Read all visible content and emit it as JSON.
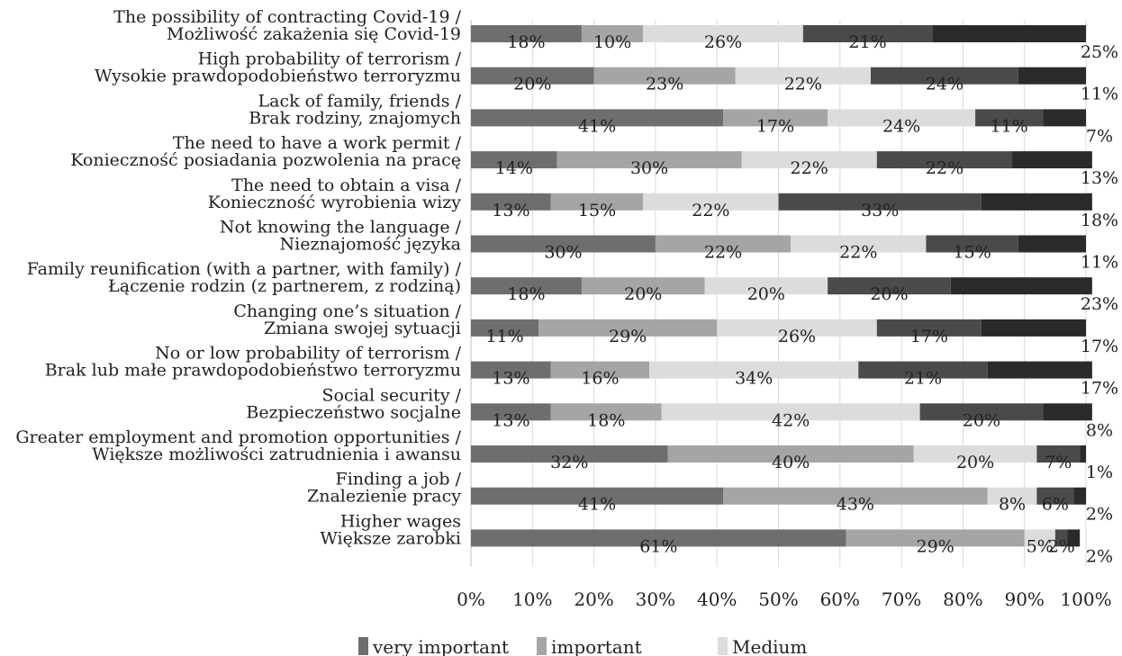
{
  "chart_data": {
    "type": "bar",
    "orientation": "horizontal",
    "stacked": "percent",
    "categories": [
      [
        "The possibility of contracting Covid-19 /",
        "Możliwość zakażenia się Covid-19"
      ],
      [
        "High probability of terrorism /",
        "Wysokie prawdopodobieństwo terroryzmu"
      ],
      [
        "Lack of family, friends /",
        "Brak rodziny, znajomych"
      ],
      [
        "The need to have a work permit /",
        "Konieczność posiadania pozwolenia na pracę"
      ],
      [
        "The need to obtain a visa /",
        "Konieczność wyrobienia wizy"
      ],
      [
        "Not knowing the language /",
        "Nieznajomość języka"
      ],
      [
        "Family reunification (with a partner, with family) /",
        "Łączenie rodzin (z partnerem, z rodziną)"
      ],
      [
        "Changing one’s situation /",
        "Zmiana swojej sytuacji"
      ],
      [
        "No or low probability of terrorism /",
        "Brak lub małe prawdopodobieństwo terroryzmu"
      ],
      [
        "Social security /",
        "Bezpieczeństwo socjalne"
      ],
      [
        "Greater employment and promotion opportunities /",
        "Większe możliwości zatrudnienia i awansu"
      ],
      [
        "Finding a job /",
        "Znalezienie pracy"
      ],
      [
        "Higher wages",
        "Większe zarobki"
      ]
    ],
    "series": [
      {
        "name": "very important",
        "color": "#6e6e6e",
        "values": [
          18,
          20,
          41,
          14,
          13,
          30,
          18,
          11,
          13,
          13,
          32,
          41,
          61
        ]
      },
      {
        "name": "important",
        "color": "#a5a5a5",
        "values": [
          10,
          23,
          17,
          30,
          15,
          22,
          20,
          29,
          16,
          18,
          40,
          43,
          29
        ]
      },
      {
        "name": "Medium",
        "color": "#dcdcdc",
        "values": [
          26,
          22,
          24,
          22,
          22,
          22,
          20,
          26,
          34,
          42,
          20,
          8,
          5
        ]
      },
      {
        "name": "",
        "color": "#4a4a4a",
        "values": [
          21,
          24,
          11,
          22,
          33,
          15,
          20,
          17,
          21,
          20,
          7,
          6,
          2
        ]
      },
      {
        "name": "",
        "color": "#2a2a2a",
        "values": [
          25,
          11,
          7,
          13,
          18,
          11,
          23,
          17,
          17,
          8,
          1,
          2,
          2
        ]
      }
    ],
    "x_ticks": [
      "0%",
      "10%",
      "20%",
      "30%",
      "40%",
      "50%",
      "60%",
      "70%",
      "80%",
      "90%",
      "100%"
    ],
    "xlim": [
      0,
      100
    ],
    "grid": true,
    "legend_position": "bottom"
  }
}
